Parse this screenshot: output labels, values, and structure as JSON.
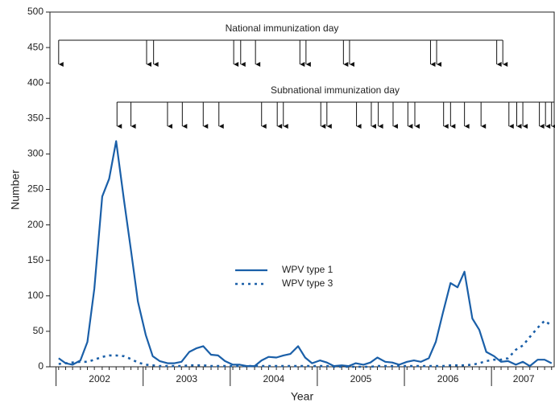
{
  "chart_data": {
    "type": "line",
    "ylabel": "Number",
    "xlabel": "Year",
    "xlim": [
      2001.93,
      2007.72
    ],
    "ylim": [
      0,
      500
    ],
    "yticks": [
      0,
      50,
      100,
      150,
      200,
      250,
      300,
      350,
      400,
      450,
      500
    ],
    "xticks": [
      {
        "value": 2002.5,
        "label": "2002"
      },
      {
        "value": 2003.5,
        "label": "2003"
      },
      {
        "value": 2004.5,
        "label": "2004"
      },
      {
        "value": 2005.5,
        "label": "2005"
      },
      {
        "value": 2006.5,
        "label": "2006"
      },
      {
        "value": 2007.37,
        "label": "2007"
      }
    ],
    "year_boundaries": [
      2002,
      2003,
      2004,
      2005,
      2006,
      2007
    ],
    "x": [
      2002.03,
      2002.11,
      2002.19,
      2002.28,
      2002.36,
      2002.44,
      2002.53,
      2002.61,
      2002.69,
      2002.78,
      2002.86,
      2002.94,
      2003.03,
      2003.11,
      2003.19,
      2003.28,
      2003.36,
      2003.44,
      2003.53,
      2003.61,
      2003.69,
      2003.78,
      2003.86,
      2003.94,
      2004.03,
      2004.11,
      2004.19,
      2004.28,
      2004.36,
      2004.44,
      2004.53,
      2004.61,
      2004.69,
      2004.78,
      2004.86,
      2004.94,
      2005.03,
      2005.11,
      2005.19,
      2005.28,
      2005.36,
      2005.44,
      2005.53,
      2005.61,
      2005.69,
      2005.78,
      2005.86,
      2005.94,
      2006.03,
      2006.11,
      2006.19,
      2006.28,
      2006.36,
      2006.44,
      2006.53,
      2006.61,
      2006.69,
      2006.78,
      2006.86,
      2006.94,
      2007.03,
      2007.11,
      2007.19,
      2007.28,
      2007.36,
      2007.44,
      2007.53,
      2007.61,
      2007.69
    ],
    "series": [
      {
        "name": "WPV type 1",
        "color": "#1a5fa8",
        "dash": false,
        "values": [
          12,
          5,
          3,
          9,
          35,
          110,
          240,
          265,
          318,
          235,
          165,
          92,
          45,
          15,
          8,
          5,
          5,
          7,
          21,
          26,
          29,
          17,
          16,
          8,
          3,
          3,
          1,
          1,
          9,
          14,
          13,
          16,
          18,
          29,
          13,
          5,
          9,
          6,
          1,
          2,
          1,
          5,
          3,
          6,
          13,
          7,
          6,
          3,
          7,
          9,
          7,
          12,
          35,
          75,
          118,
          112,
          134,
          68,
          52,
          21,
          15,
          7,
          8,
          3,
          7,
          1,
          10,
          10,
          5
        ]
      },
      {
        "name": "WPV type 3",
        "color": "#1a5fa8",
        "dash": true,
        "values": [
          4,
          5,
          6,
          7,
          7,
          10,
          14,
          16,
          16,
          15,
          11,
          6,
          3,
          2,
          1,
          1,
          1,
          1,
          2,
          2,
          2,
          1,
          1,
          1,
          1,
          1,
          1,
          1,
          1,
          1,
          1,
          1,
          1,
          1,
          1,
          1,
          1,
          1,
          0,
          0,
          0,
          0,
          0,
          0,
          1,
          1,
          1,
          1,
          1,
          1,
          1,
          1,
          1,
          1,
          2,
          2,
          2,
          3,
          5,
          8,
          10,
          10,
          12,
          24,
          30,
          42,
          55,
          65,
          58
        ]
      }
    ],
    "annotations": [
      {
        "label": "National immunization day",
        "dates": [
          2002.03,
          2003.04,
          2003.12,
          2004.04,
          2004.12,
          2004.29,
          2004.8,
          2004.87,
          2005.3,
          2005.37,
          2006.3,
          2006.37,
          2007.06,
          2007.13
        ]
      },
      {
        "label": "Subnational immunization day",
        "dates": [
          2002.7,
          2002.86,
          2003.28,
          2003.45,
          2003.69,
          2003.87,
          2004.36,
          2004.54,
          2004.61,
          2005.04,
          2005.11,
          2005.45,
          2005.62,
          2005.7,
          2005.87,
          2006.04,
          2006.12,
          2006.45,
          2006.53,
          2006.69,
          2006.88,
          2007.2,
          2007.29,
          2007.36,
          2007.55,
          2007.62,
          2007.69
        ]
      }
    ]
  }
}
